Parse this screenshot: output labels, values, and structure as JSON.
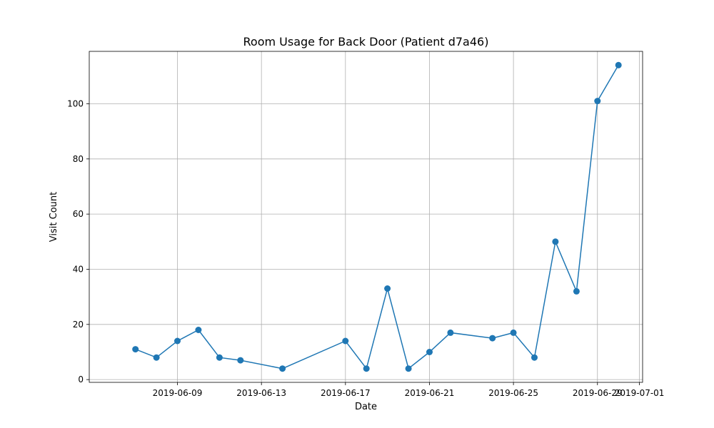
{
  "chart_data": {
    "type": "line",
    "title": "Room Usage for Back Door (Patient d7a46)",
    "xlabel": "Date",
    "ylabel": "Visit Count",
    "xlim": [
      "2019-06-05",
      "2019-07-01"
    ],
    "ylim": [
      -1,
      119
    ],
    "x_ticks": [
      "2019-06-09",
      "2019-06-13",
      "2019-06-17",
      "2019-06-21",
      "2019-06-25",
      "2019-06-29",
      "2019-07-01"
    ],
    "y_ticks": [
      0,
      20,
      40,
      60,
      80,
      100
    ],
    "grid": true,
    "series": [
      {
        "color": "#1f77b4",
        "marker": "circle",
        "points": [
          {
            "x": "2019-06-07",
            "y": 11
          },
          {
            "x": "2019-06-08",
            "y": 8
          },
          {
            "x": "2019-06-09",
            "y": 14
          },
          {
            "x": "2019-06-10",
            "y": 18
          },
          {
            "x": "2019-06-11",
            "y": 8
          },
          {
            "x": "2019-06-12",
            "y": 7
          },
          {
            "x": "2019-06-14",
            "y": 4
          },
          {
            "x": "2019-06-17",
            "y": 14
          },
          {
            "x": "2019-06-18",
            "y": 4
          },
          {
            "x": "2019-06-19",
            "y": 33
          },
          {
            "x": "2019-06-20",
            "y": 4
          },
          {
            "x": "2019-06-21",
            "y": 10
          },
          {
            "x": "2019-06-22",
            "y": 17
          },
          {
            "x": "2019-06-24",
            "y": 15
          },
          {
            "x": "2019-06-25",
            "y": 17
          },
          {
            "x": "2019-06-26",
            "y": 8
          },
          {
            "x": "2019-06-27",
            "y": 50
          },
          {
            "x": "2019-06-28",
            "y": 32
          },
          {
            "x": "2019-06-29",
            "y": 101
          },
          {
            "x": "2019-06-30",
            "y": 114
          }
        ]
      }
    ]
  }
}
